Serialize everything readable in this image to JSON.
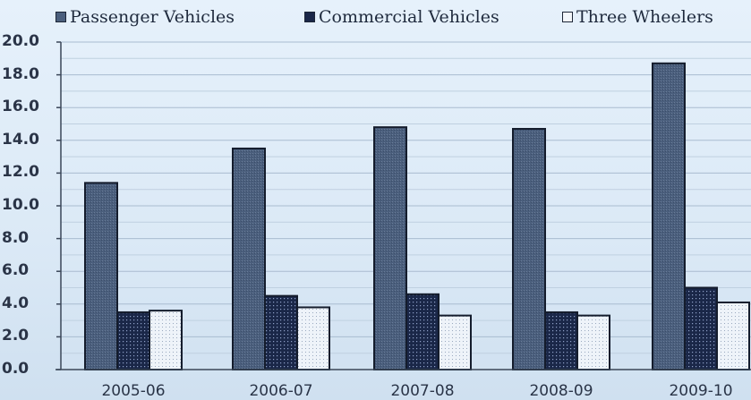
{
  "chart_data": {
    "type": "bar",
    "title": "",
    "xlabel": "",
    "ylabel": "",
    "categories": [
      "2005-06",
      "2006-07",
      "2007-08",
      "2008-09",
      "2009-10"
    ],
    "series": [
      {
        "name": "Passenger Vehicles",
        "values": [
          11.4,
          13.5,
          14.8,
          14.7,
          18.7
        ],
        "color": "#4b5f7d"
      },
      {
        "name": "Commercial Vehicles",
        "values": [
          3.5,
          4.5,
          4.6,
          3.5,
          5.0
        ],
        "color": "#1a2748"
      },
      {
        "name": "Three Wheelers",
        "values": [
          3.6,
          3.8,
          3.3,
          3.3,
          4.1
        ],
        "color": "#f3f7fb"
      }
    ],
    "ylim": [
      0,
      20
    ],
    "yticks": [
      "0.0",
      "2.0",
      "4.0",
      "6.0",
      "8.0",
      "10.0",
      "12.0",
      "14.0",
      "16.0",
      "18.0",
      "20.0"
    ],
    "grid": true,
    "legend_position": "top"
  },
  "legend": {
    "items": [
      {
        "label": "Passenger Vehicles"
      },
      {
        "label": "Commercial Vehicles"
      },
      {
        "label": "Three Wheelers"
      }
    ]
  }
}
